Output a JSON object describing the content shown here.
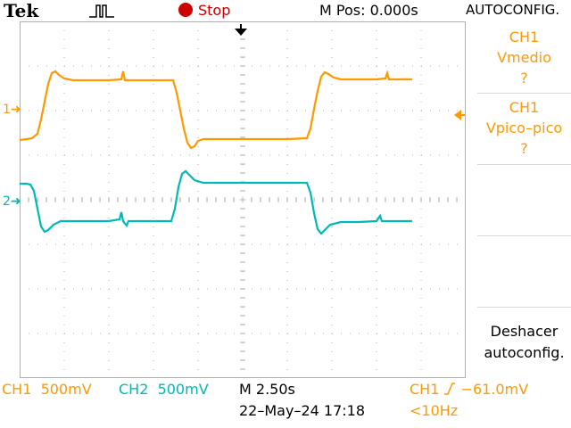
{
  "topbar": {
    "brand": "Tek",
    "acquisition_icon": "pulse-acquire-icon",
    "run_state": "Stop",
    "stop_color": "#cc0000",
    "mpos": "M Pos: 0.000s",
    "autoconfig_title": "AUTOCONFIG."
  },
  "sidepanel": {
    "box1": {
      "line1": "CH1",
      "line2": "Vmedio",
      "line3": "?"
    },
    "box2": {
      "line1": "CH1",
      "line2": "Vpico–pico",
      "line3": "?"
    },
    "undo": {
      "line1": "Deshacer",
      "line2": "autoconfig."
    }
  },
  "markers": {
    "ch1": "1",
    "ch2": "2"
  },
  "bottom": {
    "ch1_label": "CH1",
    "ch1_scale": "500mV",
    "ch2_label": "CH2",
    "ch2_scale": "500mV",
    "timebase": "M 2.50s",
    "datetime": "22–May–24 17:18",
    "trigger_source": "CH1",
    "trigger_level": "−61.0mV",
    "trigger_freq": "<10Hz"
  },
  "colors": {
    "ch1": "#ff9900",
    "ch2": "#00b8b8",
    "grid": "#b0b0b0"
  }
}
